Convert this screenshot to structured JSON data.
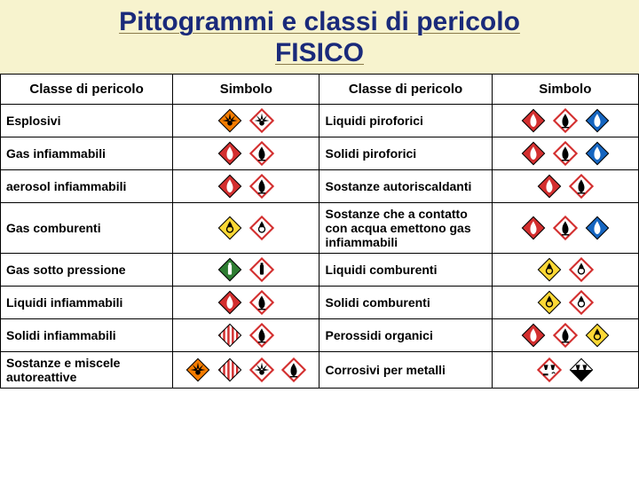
{
  "title_line1": "Pittogrammi e classi di pericolo",
  "title_line2": "FISICO",
  "headers": {
    "class": "Classe di pericolo",
    "symbol": "Simbolo"
  },
  "rows": [
    {
      "left": {
        "label": "Esplosivi",
        "sym": [
          "adr_orange_explode",
          "ghs_explode"
        ]
      },
      "right": {
        "label": "Liquidi piroforici",
        "sym": [
          "adr_red_flame",
          "ghs_flame",
          "adr_blue"
        ]
      }
    },
    {
      "left": {
        "label": "Gas infiammabili",
        "sym": [
          "adr_red_flame",
          "ghs_flame"
        ]
      },
      "right": {
        "label": "Solidi piroforici",
        "sym": [
          "adr_red_flame",
          "ghs_flame",
          "adr_blue"
        ]
      }
    },
    {
      "left": {
        "label": "aerosol infiammabili",
        "sym": [
          "adr_red_flame",
          "ghs_flame"
        ]
      },
      "right": {
        "label": "Sostanze autoriscaldanti",
        "sym": [
          "adr_red_flame",
          "ghs_flame"
        ]
      }
    },
    {
      "left": {
        "label": "Gas comburenti",
        "sym": [
          "adr_yellow_oxid",
          "ghs_oxid"
        ]
      },
      "right": {
        "label": "Sostanze che a contatto con acqua emettono gas infiammabili",
        "sym": [
          "adr_red_flame",
          "ghs_flame",
          "adr_blue"
        ]
      }
    },
    {
      "left": {
        "label": "Gas sotto pressione",
        "sym": [
          "adr_green_gas",
          "ghs_cylinder"
        ]
      },
      "right": {
        "label": "Liquidi comburenti",
        "sym": [
          "adr_yellow_oxid",
          "ghs_oxid"
        ]
      }
    },
    {
      "left": {
        "label": "Liquidi infiammabili",
        "sym": [
          "adr_red_flame",
          "ghs_flame"
        ]
      },
      "right": {
        "label": "Solidi comburenti",
        "sym": [
          "adr_yellow_oxid",
          "ghs_oxid"
        ]
      }
    },
    {
      "left": {
        "label": "Solidi infiammabili",
        "sym": [
          "adr_stripes",
          "ghs_flame"
        ]
      },
      "right": {
        "label": "Perossidi organici",
        "sym": [
          "adr_red_flame",
          "ghs_flame",
          "adr_yellow_oxid"
        ]
      }
    },
    {
      "left": {
        "label": "Sostanze e miscele autoreattive",
        "sym": [
          "adr_orange_explode",
          "adr_stripes",
          "ghs_explode",
          "ghs_flame"
        ]
      },
      "right": {
        "label": "Corrosivi per metalli",
        "sym": [
          "ghs_corrosive",
          "adr_corrosive"
        ]
      }
    }
  ],
  "colors": {
    "banner_bg": "#f7f3ce",
    "title_color": "#1a2a7a",
    "adr_orange": "#f57c00",
    "adr_red": "#d32f2f",
    "adr_yellow": "#fdd835",
    "adr_green": "#2e7d32",
    "adr_blue": "#1565c0",
    "ghs_border": "#d32f2f",
    "black": "#000000",
    "white": "#ffffff"
  },
  "picto_size": 28
}
